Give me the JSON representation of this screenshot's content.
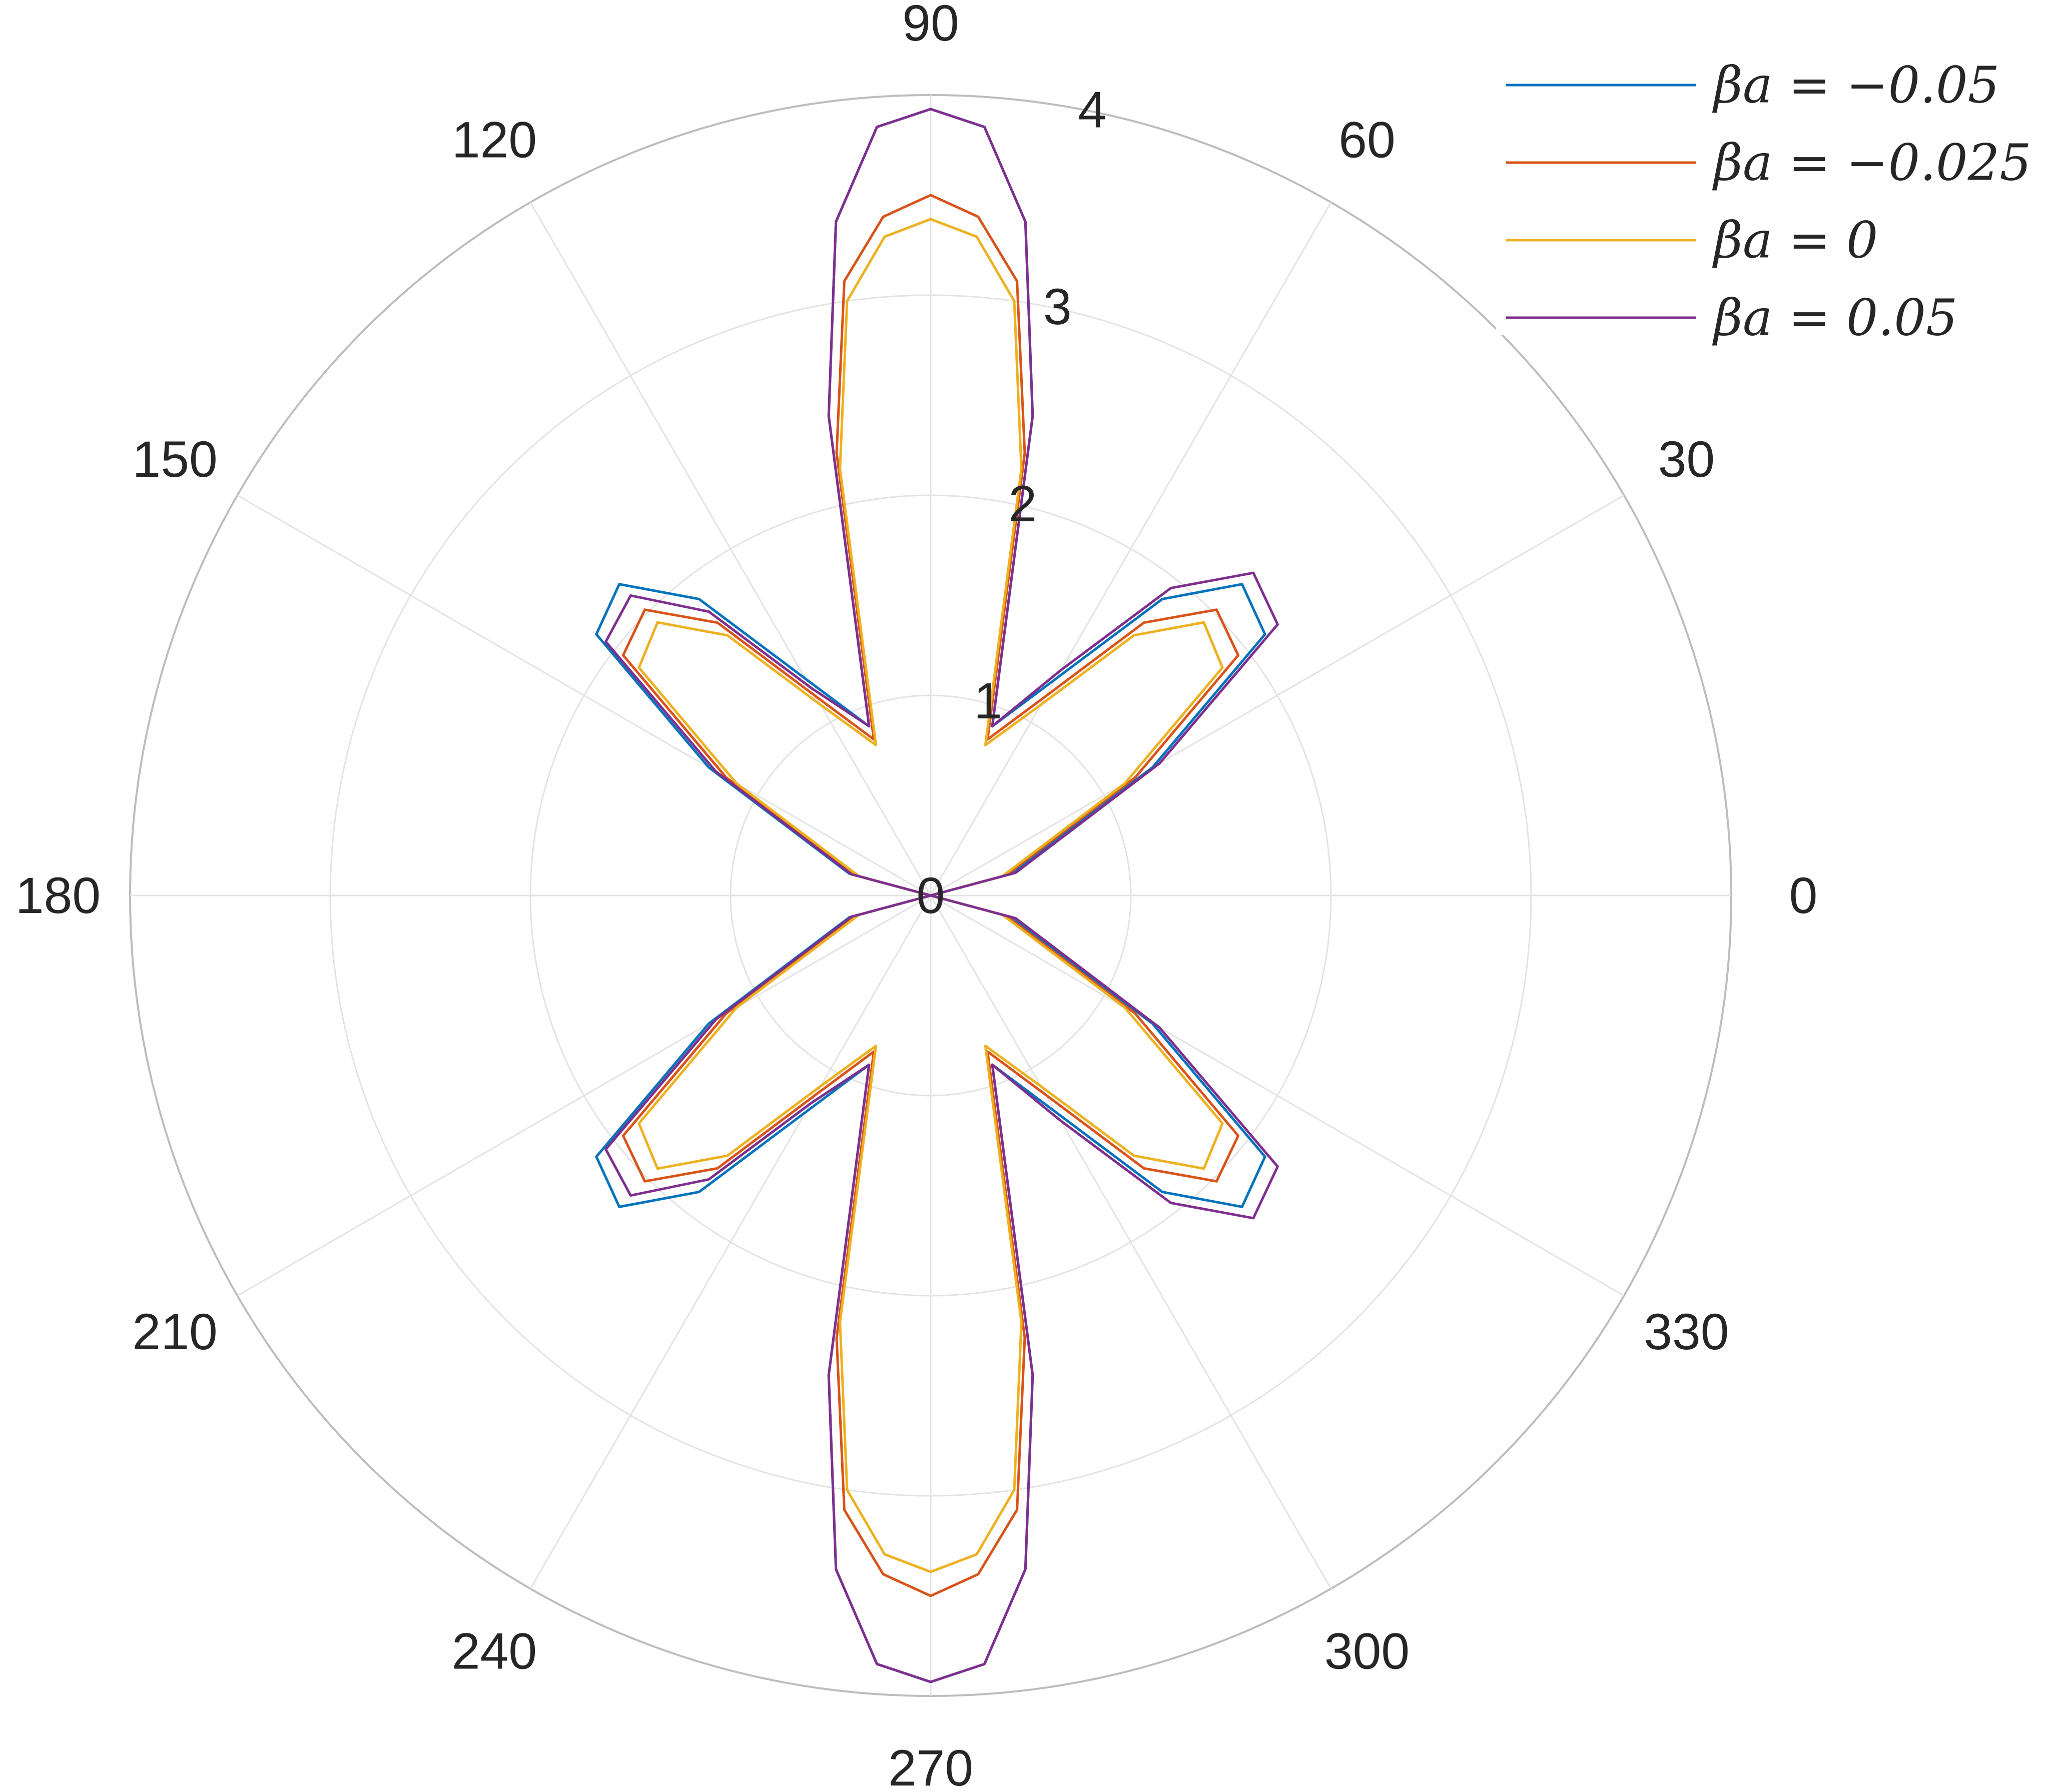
{
  "chart_data": {
    "type": "polar-line",
    "theta_unit": "degrees",
    "theta_ticks": [
      0,
      30,
      60,
      90,
      120,
      150,
      180,
      210,
      240,
      270,
      300,
      330
    ],
    "theta_tick_labels": [
      "0",
      "30",
      "60",
      "90",
      "120",
      "150",
      "180",
      "210",
      "240",
      "270",
      "300",
      "330"
    ],
    "r_lim": [
      0,
      4
    ],
    "r_ticks": [
      0,
      1,
      2,
      3,
      4
    ],
    "r_tick_labels": [
      "0",
      "1",
      "2",
      "3",
      "4"
    ],
    "grid": true,
    "legend_position": "top-right",
    "series": [
      {
        "name": "βa = −0.05",
        "color": "#0072BD",
        "points": [
          [
            0,
            0
          ],
          [
            15,
            0.42
          ],
          [
            30,
            1.28
          ],
          [
            38,
            2.12
          ],
          [
            45,
            2.2
          ],
          [
            52,
            1.88
          ],
          [
            60,
            1.25
          ],
          [
            70,
            0.9
          ],
          [
            78,
            2.45
          ],
          [
            82,
            3.4
          ],
          [
            86,
            3.85
          ],
          [
            90,
            3.93
          ],
          [
            94,
            3.85
          ],
          [
            98,
            3.4
          ],
          [
            102,
            2.45
          ],
          [
            110,
            0.9
          ],
          [
            120,
            1.25
          ],
          [
            128,
            1.88
          ],
          [
            135,
            2.2
          ],
          [
            142,
            2.12
          ],
          [
            150,
            1.28
          ],
          [
            165,
            0.42
          ],
          [
            180,
            0
          ],
          [
            195,
            0.42
          ],
          [
            210,
            1.28
          ],
          [
            218,
            2.12
          ],
          [
            225,
            2.2
          ],
          [
            232,
            1.88
          ],
          [
            240,
            1.25
          ],
          [
            250,
            0.9
          ],
          [
            258,
            2.45
          ],
          [
            262,
            3.4
          ],
          [
            266,
            3.85
          ],
          [
            270,
            3.93
          ],
          [
            274,
            3.85
          ],
          [
            278,
            3.4
          ],
          [
            282,
            2.45
          ],
          [
            290,
            0.9
          ],
          [
            300,
            1.25
          ],
          [
            308,
            1.88
          ],
          [
            315,
            2.2
          ],
          [
            322,
            2.12
          ],
          [
            330,
            1.28
          ],
          [
            345,
            0.42
          ],
          [
            360,
            0
          ]
        ]
      },
      {
        "name": "βa = −0.025",
        "color": "#D95319",
        "points": [
          [
            0,
            0
          ],
          [
            15,
            0.39
          ],
          [
            30,
            1.18
          ],
          [
            38,
            1.95
          ],
          [
            45,
            2.02
          ],
          [
            52,
            1.73
          ],
          [
            60,
            1.15
          ],
          [
            70,
            0.83
          ],
          [
            78,
            2.26
          ],
          [
            82,
            3.1
          ],
          [
            86,
            3.4
          ],
          [
            90,
            3.5
          ],
          [
            94,
            3.4
          ],
          [
            98,
            3.1
          ],
          [
            102,
            2.26
          ],
          [
            110,
            0.83
          ],
          [
            120,
            1.15
          ],
          [
            128,
            1.73
          ],
          [
            135,
            2.02
          ],
          [
            142,
            1.95
          ],
          [
            150,
            1.18
          ],
          [
            165,
            0.39
          ],
          [
            180,
            0
          ],
          [
            195,
            0.39
          ],
          [
            210,
            1.18
          ],
          [
            218,
            1.95
          ],
          [
            225,
            2.02
          ],
          [
            232,
            1.73
          ],
          [
            240,
            1.15
          ],
          [
            250,
            0.83
          ],
          [
            258,
            2.26
          ],
          [
            262,
            3.1
          ],
          [
            266,
            3.4
          ],
          [
            270,
            3.5
          ],
          [
            274,
            3.4
          ],
          [
            278,
            3.1
          ],
          [
            282,
            2.26
          ],
          [
            290,
            0.83
          ],
          [
            300,
            1.15
          ],
          [
            308,
            1.73
          ],
          [
            315,
            2.02
          ],
          [
            322,
            1.95
          ],
          [
            330,
            1.18
          ],
          [
            345,
            0.39
          ],
          [
            360,
            0
          ]
        ]
      },
      {
        "name": "βa = 0",
        "color": "#EDB120",
        "points": [
          [
            0,
            0
          ],
          [
            15,
            0.37
          ],
          [
            30,
            1.12
          ],
          [
            38,
            1.85
          ],
          [
            45,
            1.93
          ],
          [
            52,
            1.65
          ],
          [
            60,
            1.1
          ],
          [
            70,
            0.8
          ],
          [
            78,
            2.18
          ],
          [
            82,
            3.0
          ],
          [
            86,
            3.3
          ],
          [
            90,
            3.38
          ],
          [
            94,
            3.3
          ],
          [
            98,
            3.0
          ],
          [
            102,
            2.18
          ],
          [
            110,
            0.8
          ],
          [
            120,
            1.1
          ],
          [
            128,
            1.65
          ],
          [
            135,
            1.93
          ],
          [
            142,
            1.85
          ],
          [
            150,
            1.12
          ],
          [
            165,
            0.37
          ],
          [
            180,
            0
          ],
          [
            195,
            0.37
          ],
          [
            210,
            1.12
          ],
          [
            218,
            1.85
          ],
          [
            225,
            1.93
          ],
          [
            232,
            1.65
          ],
          [
            240,
            1.1
          ],
          [
            250,
            0.8
          ],
          [
            258,
            2.18
          ],
          [
            262,
            3.0
          ],
          [
            266,
            3.3
          ],
          [
            270,
            3.38
          ],
          [
            274,
            3.3
          ],
          [
            278,
            3.0
          ],
          [
            282,
            2.18
          ],
          [
            290,
            0.8
          ],
          [
            300,
            1.1
          ],
          [
            308,
            1.65
          ],
          [
            315,
            1.93
          ],
          [
            322,
            1.85
          ],
          [
            330,
            1.12
          ],
          [
            345,
            0.37
          ],
          [
            360,
            0
          ]
        ]
      },
      {
        "name": "βa = 0.05",
        "color": "#7E2F8E",
        "points": [
          [
            0,
            0
          ],
          [
            15,
            0.44
          ],
          [
            30,
            1.32
          ],
          [
            38,
            2.2
          ],
          [
            45,
            2.28
          ],
          [
            52,
            1.95
          ],
          [
            60,
            1.3
          ],
          [
            70,
            0.9
          ],
          [
            78,
            2.45
          ],
          [
            82,
            3.4
          ],
          [
            86,
            3.85
          ],
          [
            90,
            3.93
          ],
          [
            94,
            3.85
          ],
          [
            98,
            3.4
          ],
          [
            102,
            2.45
          ],
          [
            110,
            0.9
          ],
          [
            120,
            1.2
          ],
          [
            128,
            1.8
          ],
          [
            135,
            2.12
          ],
          [
            142,
            2.06
          ],
          [
            150,
            1.24
          ],
          [
            165,
            0.41
          ],
          [
            180,
            0
          ],
          [
            195,
            0.41
          ],
          [
            210,
            1.24
          ],
          [
            218,
            2.06
          ],
          [
            225,
            2.12
          ],
          [
            232,
            1.8
          ],
          [
            240,
            1.2
          ],
          [
            250,
            0.9
          ],
          [
            258,
            2.45
          ],
          [
            262,
            3.4
          ],
          [
            266,
            3.85
          ],
          [
            270,
            3.93
          ],
          [
            274,
            3.85
          ],
          [
            278,
            3.4
          ],
          [
            282,
            2.45
          ],
          [
            290,
            0.9
          ],
          [
            300,
            1.3
          ],
          [
            308,
            1.95
          ],
          [
            315,
            2.28
          ],
          [
            322,
            2.2
          ],
          [
            330,
            1.32
          ],
          [
            345,
            0.44
          ],
          [
            360,
            0
          ]
        ]
      }
    ]
  }
}
